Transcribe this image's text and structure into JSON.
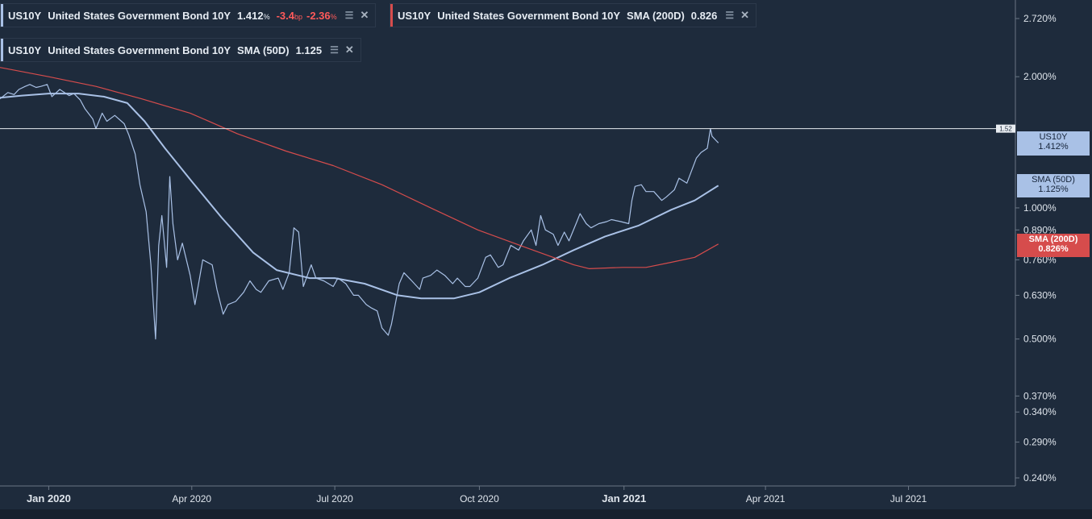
{
  "legend": [
    {
      "symbol": "US10Y",
      "name": "United States Government Bond 10Y",
      "value": "1.412",
      "unit": "%",
      "change": "-3.4",
      "change_unit": "bp",
      "change_pct": "-2.36",
      "change_pct_unit": "%"
    },
    {
      "symbol": "US10Y",
      "name": "United States Government Bond 10Y",
      "indicator": "SMA (200D)",
      "value": "0.826"
    },
    {
      "symbol": "US10Y",
      "name": "United States Government Bond 10Y",
      "indicator": "SMA (50D)",
      "value": "1.125"
    }
  ],
  "price_tags": [
    {
      "line1": "US10Y",
      "line2": "1.412%"
    },
    {
      "line1": "SMA (50D)",
      "line2": "1.125%"
    },
    {
      "line1": "SMA (200D)",
      "line2": "0.826%"
    }
  ],
  "crosshair_label": "1.52",
  "colors": {
    "background": "#1e2b3c",
    "price": "#a9c1e6",
    "sma200": "#d64c4c",
    "crosshair": "#e8ecf1"
  },
  "icons": [
    "layers-icon",
    "close-icon"
  ],
  "chart_data": {
    "type": "line",
    "y_scale": "log",
    "ylim": [
      0.23,
      3.0
    ],
    "xlim": [
      "2019-12-01",
      "2021-09-07"
    ],
    "y_ticks": [
      "2.720%",
      "2.000%",
      "1.000%",
      "0.890%",
      "0.760%",
      "0.630%",
      "0.500%",
      "0.370%",
      "0.340%",
      "0.290%",
      "0.240%"
    ],
    "y_tick_values": [
      2.72,
      2.0,
      1.0,
      0.89,
      0.76,
      0.63,
      0.5,
      0.37,
      0.34,
      0.29,
      0.24
    ],
    "x_ticks": [
      "Jan 2020",
      "Apr 2020",
      "Jul 2020",
      "Oct 2020",
      "Jan 2021",
      "Apr 2021",
      "Jul 2021"
    ],
    "x_tick_dates": [
      "2020-01-01",
      "2020-04-01",
      "2020-07-01",
      "2020-10-01",
      "2021-01-01",
      "2021-04-01",
      "2021-07-01"
    ],
    "x_tick_bold": [
      true,
      false,
      false,
      false,
      true,
      false,
      false
    ],
    "crosshair_y": 1.52,
    "series": [
      {
        "name": "US10Y",
        "color": "#a9c1e6",
        "points": [
          [
            "2019-12-01",
            1.78
          ],
          [
            "2019-12-06",
            1.84
          ],
          [
            "2019-12-10",
            1.82
          ],
          [
            "2019-12-13",
            1.87
          ],
          [
            "2019-12-17",
            1.9
          ],
          [
            "2019-12-20",
            1.92
          ],
          [
            "2019-12-24",
            1.89
          ],
          [
            "2019-12-27",
            1.9
          ],
          [
            "2019-12-31",
            1.92
          ],
          [
            "2020-01-03",
            1.8
          ],
          [
            "2020-01-08",
            1.87
          ],
          [
            "2020-01-14",
            1.81
          ],
          [
            "2020-01-17",
            1.83
          ],
          [
            "2020-01-21",
            1.77
          ],
          [
            "2020-01-24",
            1.69
          ],
          [
            "2020-01-29",
            1.6
          ],
          [
            "2020-01-31",
            1.52
          ],
          [
            "2020-02-04",
            1.65
          ],
          [
            "2020-02-07",
            1.58
          ],
          [
            "2020-02-12",
            1.63
          ],
          [
            "2020-02-18",
            1.56
          ],
          [
            "2020-02-21",
            1.47
          ],
          [
            "2020-02-25",
            1.33
          ],
          [
            "2020-02-28",
            1.13
          ],
          [
            "2020-03-03",
            0.98
          ],
          [
            "2020-03-06",
            0.74
          ],
          [
            "2020-03-09",
            0.5
          ],
          [
            "2020-03-11",
            0.82
          ],
          [
            "2020-03-13",
            0.96
          ],
          [
            "2020-03-16",
            0.73
          ],
          [
            "2020-03-18",
            1.18
          ],
          [
            "2020-03-20",
            0.92
          ],
          [
            "2020-03-23",
            0.76
          ],
          [
            "2020-03-26",
            0.83
          ],
          [
            "2020-03-31",
            0.7
          ],
          [
            "2020-04-03",
            0.6
          ],
          [
            "2020-04-08",
            0.76
          ],
          [
            "2020-04-14",
            0.74
          ],
          [
            "2020-04-17",
            0.65
          ],
          [
            "2020-04-21",
            0.57
          ],
          [
            "2020-04-24",
            0.6
          ],
          [
            "2020-04-29",
            0.61
          ],
          [
            "2020-05-04",
            0.64
          ],
          [
            "2020-05-08",
            0.68
          ],
          [
            "2020-05-12",
            0.65
          ],
          [
            "2020-05-15",
            0.64
          ],
          [
            "2020-05-20",
            0.68
          ],
          [
            "2020-05-26",
            0.69
          ],
          [
            "2020-05-29",
            0.65
          ],
          [
            "2020-06-02",
            0.71
          ],
          [
            "2020-06-05",
            0.9
          ],
          [
            "2020-06-08",
            0.88
          ],
          [
            "2020-06-11",
            0.66
          ],
          [
            "2020-06-16",
            0.74
          ],
          [
            "2020-06-19",
            0.69
          ],
          [
            "2020-06-24",
            0.68
          ],
          [
            "2020-06-30",
            0.66
          ],
          [
            "2020-07-03",
            0.69
          ],
          [
            "2020-07-08",
            0.67
          ],
          [
            "2020-07-13",
            0.63
          ],
          [
            "2020-07-16",
            0.63
          ],
          [
            "2020-07-21",
            0.6
          ],
          [
            "2020-07-24",
            0.59
          ],
          [
            "2020-07-28",
            0.58
          ],
          [
            "2020-07-31",
            0.53
          ],
          [
            "2020-08-04",
            0.51
          ],
          [
            "2020-08-06",
            0.54
          ],
          [
            "2020-08-11",
            0.67
          ],
          [
            "2020-08-14",
            0.71
          ],
          [
            "2020-08-19",
            0.68
          ],
          [
            "2020-08-24",
            0.65
          ],
          [
            "2020-08-26",
            0.69
          ],
          [
            "2020-08-31",
            0.7
          ],
          [
            "2020-09-04",
            0.72
          ],
          [
            "2020-09-09",
            0.7
          ],
          [
            "2020-09-14",
            0.67
          ],
          [
            "2020-09-17",
            0.69
          ],
          [
            "2020-09-22",
            0.66
          ],
          [
            "2020-09-25",
            0.66
          ],
          [
            "2020-09-30",
            0.69
          ],
          [
            "2020-10-05",
            0.77
          ],
          [
            "2020-10-08",
            0.78
          ],
          [
            "2020-10-13",
            0.73
          ],
          [
            "2020-10-16",
            0.74
          ],
          [
            "2020-10-21",
            0.82
          ],
          [
            "2020-10-26",
            0.8
          ],
          [
            "2020-10-29",
            0.84
          ],
          [
            "2020-11-03",
            0.89
          ],
          [
            "2020-11-06",
            0.82
          ],
          [
            "2020-11-09",
            0.96
          ],
          [
            "2020-11-12",
            0.89
          ],
          [
            "2020-11-17",
            0.87
          ],
          [
            "2020-11-20",
            0.82
          ],
          [
            "2020-11-24",
            0.88
          ],
          [
            "2020-11-27",
            0.84
          ],
          [
            "2020-12-02",
            0.93
          ],
          [
            "2020-12-04",
            0.97
          ],
          [
            "2020-12-08",
            0.92
          ],
          [
            "2020-12-11",
            0.9
          ],
          [
            "2020-12-16",
            0.92
          ],
          [
            "2020-12-21",
            0.93
          ],
          [
            "2020-12-24",
            0.94
          ],
          [
            "2020-12-30",
            0.93
          ],
          [
            "2021-01-04",
            0.92
          ],
          [
            "2021-01-06",
            1.04
          ],
          [
            "2021-01-08",
            1.12
          ],
          [
            "2021-01-12",
            1.13
          ],
          [
            "2021-01-15",
            1.09
          ],
          [
            "2021-01-20",
            1.09
          ],
          [
            "2021-01-25",
            1.04
          ],
          [
            "2021-01-28",
            1.06
          ],
          [
            "2021-02-02",
            1.1
          ],
          [
            "2021-02-05",
            1.17
          ],
          [
            "2021-02-10",
            1.14
          ],
          [
            "2021-02-16",
            1.3
          ],
          [
            "2021-02-19",
            1.34
          ],
          [
            "2021-02-23",
            1.37
          ],
          [
            "2021-02-25",
            1.52
          ],
          [
            "2021-02-26",
            1.46
          ],
          [
            "2021-03-02",
            1.41
          ]
        ]
      },
      {
        "name": "SMA (50D)",
        "color": "#a9c1e6",
        "points": [
          [
            "2019-12-01",
            1.79
          ],
          [
            "2019-12-15",
            1.81
          ],
          [
            "2020-01-01",
            1.83
          ],
          [
            "2020-01-20",
            1.83
          ],
          [
            "2020-02-05",
            1.8
          ],
          [
            "2020-02-20",
            1.74
          ],
          [
            "2020-03-02",
            1.58
          ],
          [
            "2020-03-15",
            1.37
          ],
          [
            "2020-04-01",
            1.15
          ],
          [
            "2020-04-20",
            0.95
          ],
          [
            "2020-05-10",
            0.79
          ],
          [
            "2020-05-25",
            0.72
          ],
          [
            "2020-06-15",
            0.69
          ],
          [
            "2020-07-01",
            0.69
          ],
          [
            "2020-07-20",
            0.67
          ],
          [
            "2020-08-10",
            0.63
          ],
          [
            "2020-08-25",
            0.62
          ],
          [
            "2020-09-15",
            0.62
          ],
          [
            "2020-10-01",
            0.64
          ],
          [
            "2020-10-20",
            0.69
          ],
          [
            "2020-11-10",
            0.74
          ],
          [
            "2020-11-30",
            0.8
          ],
          [
            "2020-12-20",
            0.86
          ],
          [
            "2021-01-10",
            0.91
          ],
          [
            "2021-01-31",
            0.99
          ],
          [
            "2021-02-15",
            1.04
          ],
          [
            "2021-03-02",
            1.125
          ]
        ]
      },
      {
        "name": "SMA (200D)",
        "color": "#d64c4c",
        "points": [
          [
            "2019-12-01",
            2.1
          ],
          [
            "2020-01-01",
            2.0
          ],
          [
            "2020-01-31",
            1.9
          ],
          [
            "2020-02-29",
            1.78
          ],
          [
            "2020-03-31",
            1.65
          ],
          [
            "2020-04-30",
            1.48
          ],
          [
            "2020-05-31",
            1.35
          ],
          [
            "2020-06-30",
            1.25
          ],
          [
            "2020-07-31",
            1.13
          ],
          [
            "2020-08-31",
            1.0
          ],
          [
            "2020-09-30",
            0.89
          ],
          [
            "2020-10-31",
            0.81
          ],
          [
            "2020-11-30",
            0.74
          ],
          [
            "2020-12-10",
            0.725
          ],
          [
            "2020-12-31",
            0.73
          ],
          [
            "2021-01-15",
            0.73
          ],
          [
            "2021-01-31",
            0.75
          ],
          [
            "2021-02-15",
            0.77
          ],
          [
            "2021-03-02",
            0.826
          ]
        ]
      }
    ]
  }
}
